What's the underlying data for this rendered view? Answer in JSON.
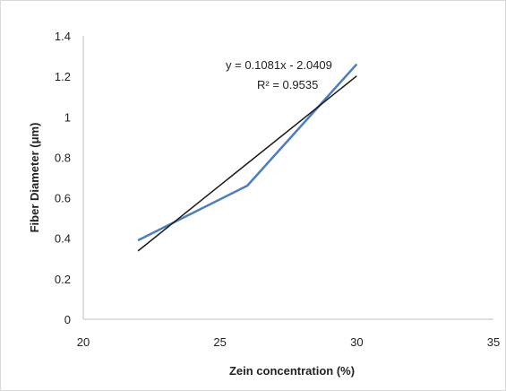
{
  "chart_data": {
    "type": "line",
    "xlabel": "Zein concentration (%)",
    "ylabel": "Fiber Diameter (μm)",
    "xlim": [
      20,
      35
    ],
    "ylim": [
      0,
      1.4
    ],
    "xticks": [
      20,
      25,
      30,
      35
    ],
    "xtick_labels": [
      "20",
      "25",
      "30",
      "35"
    ],
    "yticks": [
      0,
      0.2,
      0.4,
      0.6,
      0.8,
      1.0,
      1.2,
      1.4
    ],
    "ytick_labels": [
      "0",
      "0.2",
      "0.4",
      "0.6",
      "0.8",
      "1",
      "1.2",
      "1.4"
    ],
    "grid": false,
    "series": [
      {
        "x": [
          22,
          26,
          30
        ],
        "values": [
          0.39,
          0.66,
          1.26
        ],
        "color": "#4a7ebf"
      }
    ],
    "trendline": {
      "x": [
        22,
        30
      ],
      "slope": 0.1081,
      "intercept": -2.0409,
      "color": "#1a1a1a"
    },
    "annotations": {
      "equation": "y = 0.1081x - 2.0409",
      "r_squared": "R² = 0.9535"
    }
  }
}
